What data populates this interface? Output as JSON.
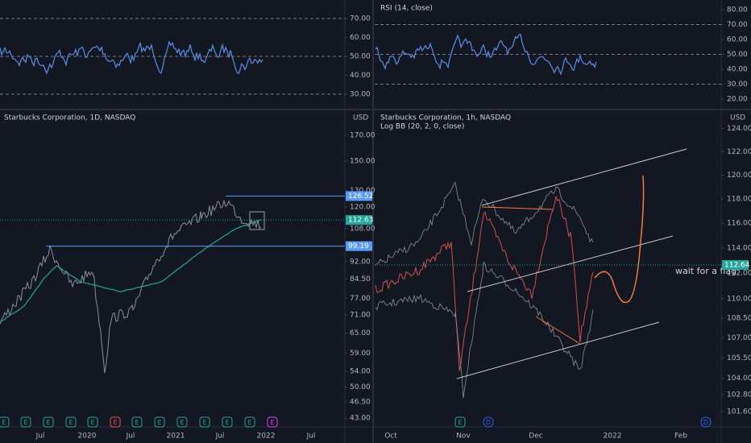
{
  "rsi_left": {
    "ylim": [
      22.3,
      79.8
    ],
    "levels": [
      70,
      50,
      30
    ],
    "yticks": [
      {
        "value": 70,
        "label": "70.00"
      },
      {
        "value": 60,
        "label": "60.00"
      },
      {
        "value": 50,
        "label": "50.00"
      },
      {
        "value": 40,
        "label": "40.00"
      },
      {
        "value": 30,
        "label": "30.00"
      }
    ]
  },
  "rsi_right": {
    "title": "RSI (14, close)",
    "ylim": [
      13.5,
      86.5
    ],
    "levels": [
      70,
      50,
      30
    ],
    "yticks": [
      {
        "value": 80,
        "label": "80.00"
      },
      {
        "value": 70,
        "label": "70.00"
      },
      {
        "value": 60,
        "label": "60.00"
      },
      {
        "value": 50,
        "label": "50.00"
      },
      {
        "value": 40,
        "label": "40.00"
      },
      {
        "value": 30,
        "label": "30.00"
      },
      {
        "value": 20,
        "label": "20.00"
      }
    ]
  },
  "price_left": {
    "title": "Starbucks Corporation, 1D, NASDAQ",
    "currency": "USD",
    "log": true,
    "ylim": [
      41.2,
      191.9
    ],
    "yticks": [
      {
        "value": 170,
        "label": "170.00"
      },
      {
        "value": 150,
        "label": "150.00"
      },
      {
        "value": 130,
        "label": "130.00"
      },
      {
        "value": 120,
        "label": "120.00"
      },
      {
        "value": 108,
        "label": "108.00"
      },
      {
        "value": 92,
        "label": "92.00"
      },
      {
        "value": 84.5,
        "label": "84.50"
      },
      {
        "value": 77,
        "label": "77.00"
      },
      {
        "value": 71,
        "label": "71.00"
      },
      {
        "value": 65,
        "label": "65.00"
      },
      {
        "value": 59,
        "label": "59.00"
      },
      {
        "value": 54,
        "label": "54.00"
      },
      {
        "value": 50,
        "label": "50.00"
      },
      {
        "value": 46.5,
        "label": "46.50"
      },
      {
        "value": 43,
        "label": "43.00"
      }
    ],
    "price_lines": [
      126.52,
      99.19
    ],
    "last_price": 112.63,
    "xticks": [
      "Jul",
      "2020",
      "Jul",
      "2021",
      "Jul",
      "2022",
      "Jul"
    ],
    "events": [
      "E",
      "E",
      "E",
      "E",
      "E",
      "E",
      "E",
      "E",
      "E",
      "E",
      "E",
      "E",
      "E"
    ]
  },
  "price_right": {
    "title": "Starbucks Corporation, 1h, NASDAQ",
    "indicator": "Log BB (20, 2, 0, close)",
    "currency": "USD",
    "log": true,
    "ylim": [
      100.5,
      125.6
    ],
    "yticks": [
      {
        "value": 124,
        "label": "124.00"
      },
      {
        "value": 122,
        "label": "122.00"
      },
      {
        "value": 120,
        "label": "120.00"
      },
      {
        "value": 118,
        "label": "118.00"
      },
      {
        "value": 116,
        "label": "116.00"
      },
      {
        "value": 114,
        "label": "114.00"
      },
      {
        "value": 112,
        "label": "112.00"
      },
      {
        "value": 110,
        "label": "110.00"
      },
      {
        "value": 108.5,
        "label": "108.50"
      },
      {
        "value": 107,
        "label": "107.00"
      },
      {
        "value": 105.5,
        "label": "105.50"
      },
      {
        "value": 104,
        "label": "104.00"
      },
      {
        "value": 102.8,
        "label": "102.80"
      },
      {
        "value": 101.6,
        "label": "101.60"
      }
    ],
    "price_lines": [],
    "last_price": 112.64,
    "xticks": [
      "Oct",
      "Nov",
      "Dec",
      "2022",
      "Feb"
    ],
    "events": [
      "E",
      "D",
      "D"
    ],
    "annotation": "wait for a flag"
  }
}
